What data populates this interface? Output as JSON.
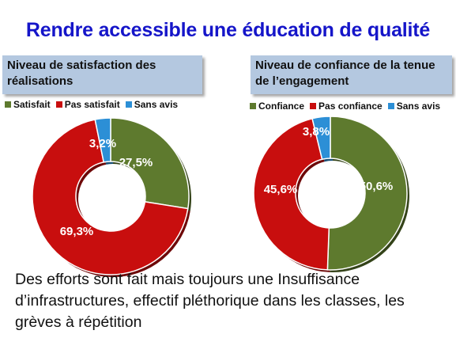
{
  "title": "Rendre accessible une éducation de qualité",
  "caption": "Des efforts sont fait mais toujours une Insuffisance d’infrastructures, effectif pléthorique dans les classes, les grèves à répétition",
  "colors": {
    "green": "#5e7a2e",
    "red": "#c80e0e",
    "blue": "#2c8fd6"
  },
  "chart_data": [
    {
      "type": "pie",
      "title": "Niveau de satisfaction des réalisations",
      "legend_position": "top",
      "categories": [
        "Satisfait",
        "Pas satisfait",
        "Sans avis"
      ],
      "values": [
        27.5,
        69.3,
        3.2
      ],
      "value_labels": [
        "27,5%",
        "69,3%",
        "3,2%"
      ],
      "colors": [
        "#5e7a2e",
        "#c80e0e",
        "#2c8fd6"
      ]
    },
    {
      "type": "pie",
      "title": "Niveau de confiance de la tenue de l’engagement",
      "legend_position": "top",
      "categories": [
        "Confiance",
        "Pas confiance",
        "Sans avis"
      ],
      "values": [
        50.6,
        45.6,
        3.8
      ],
      "value_labels": [
        "50,6%",
        "45,6%",
        "3,8%"
      ],
      "colors": [
        "#5e7a2e",
        "#c80e0e",
        "#2c8fd6"
      ]
    }
  ]
}
